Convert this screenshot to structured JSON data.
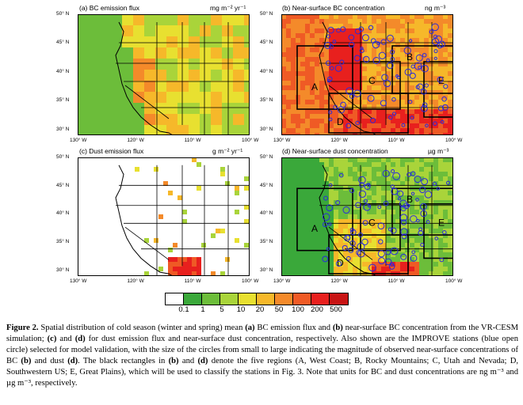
{
  "figure": {
    "panels": [
      {
        "id": "a",
        "title": "(a) BC emission flux",
        "unit": "mg m⁻² yr⁻¹",
        "kind": "bc_emission"
      },
      {
        "id": "b",
        "title": "(b) Near-surface BC concentration",
        "unit": "ng m⁻³",
        "kind": "bc_conc"
      },
      {
        "id": "c",
        "title": "(c) Dust emission flux",
        "unit": "g m⁻² yr⁻¹",
        "kind": "dust_emission"
      },
      {
        "id": "d",
        "title": "(d) Near-surface dust concentration",
        "unit": "µg m⁻³",
        "kind": "dust_conc"
      }
    ],
    "lat_ticks": [
      "50° N",
      "45° N",
      "40° N",
      "35° N",
      "30° N"
    ],
    "lon_ticks": [
      "130° W",
      "120° W",
      "110° W",
      "100° W"
    ],
    "region_labels": [
      "A",
      "B",
      "C",
      "D",
      "E"
    ],
    "legend": {
      "labels": [
        "0.1",
        "1",
        "5",
        "10",
        "20",
        "50",
        "100",
        "200",
        "500"
      ],
      "colors": [
        "#ffffff",
        "#3aa83a",
        "#6cbd3a",
        "#a9d43a",
        "#e8e030",
        "#f6b82a",
        "#f48a2a",
        "#ef5a25",
        "#e8201e",
        "#c81414"
      ]
    }
  },
  "caption": {
    "label": "Figure 2.",
    "segments": [
      {
        "t": " Spatial distribution of cold season (winter and spring) mean ",
        "b": false
      },
      {
        "t": "(a)",
        "b": true
      },
      {
        "t": " BC emission flux and ",
        "b": false
      },
      {
        "t": "(b)",
        "b": true
      },
      {
        "t": " near-surface BC concentration from the VR-CESM simulation; ",
        "b": false
      },
      {
        "t": "(c)",
        "b": true
      },
      {
        "t": " and ",
        "b": false
      },
      {
        "t": "(d)",
        "b": true
      },
      {
        "t": " for dust emission flux and near-surface dust concentration, respectively. Also shown are the IMPROVE stations (blue open circle) selected for model validation, with the size of the circles from small to large indicating the magnitude of observed near-surface concentrations of BC ",
        "b": false
      },
      {
        "t": "(b)",
        "b": true
      },
      {
        "t": " and dust ",
        "b": false
      },
      {
        "t": "(d)",
        "b": true
      },
      {
        "t": ". The black rectangles in ",
        "b": false
      },
      {
        "t": "(b)",
        "b": true
      },
      {
        "t": " and ",
        "b": false
      },
      {
        "t": "(d)",
        "b": true
      },
      {
        "t": " denote the five regions (A, West Coast; B, Rocky Mountains; C, Utah and Nevada; D, Southwestern US; E, Great Plains), which will be used to classify the stations in Fig. 3. Note that units for BC and dust concentrations are ng m⁻³ and µg m⁻³, respectively.",
        "b": false
      }
    ]
  }
}
